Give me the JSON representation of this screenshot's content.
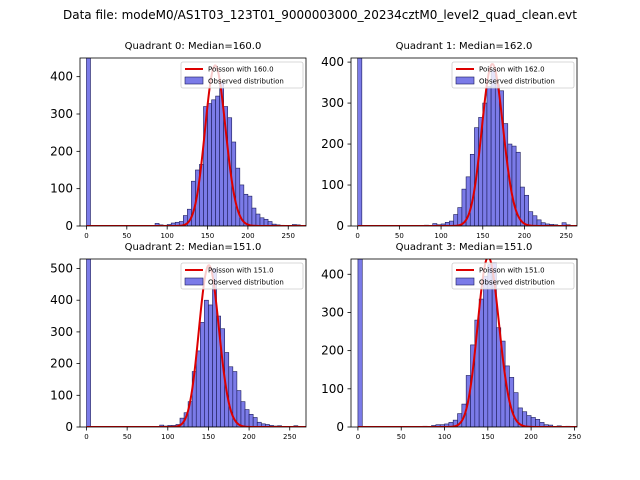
{
  "figure": {
    "suptitle": "Data file: modeM0/AS1T03_123T01_9000003000_20234cztM0_level2_quad_clean.evt"
  },
  "colors": {
    "bar_fill": "#7b7be8",
    "bar_edge": "#1c1c5a",
    "poisson": "#dd0000"
  },
  "chart_data": [
    {
      "type": "bar",
      "title": "Quadrant 0: Median=160.0",
      "bin_width": 5,
      "xlim": [
        -8,
        272
      ],
      "ylim": [
        0,
        450
      ],
      "xticks": [
        0,
        50,
        100,
        150,
        200,
        250
      ],
      "yticks": [
        0,
        100,
        200,
        300,
        400
      ],
      "legend": {
        "position": "top-right",
        "line_label": "Poisson with 160.0",
        "bar_label": "Observed distribution"
      },
      "bars": [
        {
          "x": 0,
          "y": 450
        },
        {
          "x": 85,
          "y": 7
        },
        {
          "x": 90,
          "y": 3
        },
        {
          "x": 95,
          "y": 2
        },
        {
          "x": 100,
          "y": 4
        },
        {
          "x": 105,
          "y": 8
        },
        {
          "x": 110,
          "y": 10
        },
        {
          "x": 115,
          "y": 12
        },
        {
          "x": 120,
          "y": 28
        },
        {
          "x": 125,
          "y": 45
        },
        {
          "x": 130,
          "y": 120
        },
        {
          "x": 135,
          "y": 150
        },
        {
          "x": 140,
          "y": 165
        },
        {
          "x": 145,
          "y": 320
        },
        {
          "x": 150,
          "y": 328
        },
        {
          "x": 155,
          "y": 338
        },
        {
          "x": 160,
          "y": 348
        },
        {
          "x": 165,
          "y": 385
        },
        {
          "x": 170,
          "y": 320
        },
        {
          "x": 175,
          "y": 290
        },
        {
          "x": 180,
          "y": 225
        },
        {
          "x": 185,
          "y": 155
        },
        {
          "x": 190,
          "y": 110
        },
        {
          "x": 195,
          "y": 85
        },
        {
          "x": 200,
          "y": 80
        },
        {
          "x": 205,
          "y": 48
        },
        {
          "x": 210,
          "y": 32
        },
        {
          "x": 215,
          "y": 22
        },
        {
          "x": 220,
          "y": 18
        },
        {
          "x": 225,
          "y": 12
        },
        {
          "x": 230,
          "y": 5
        },
        {
          "x": 235,
          "y": 3
        },
        {
          "x": 240,
          "y": 2
        },
        {
          "x": 255,
          "y": 4
        },
        {
          "x": 260,
          "y": 3
        }
      ],
      "poisson": {
        "mean": 160.0,
        "scale": 430
      }
    },
    {
      "type": "bar",
      "title": "Quadrant 1: Median=162.0",
      "bin_width": 5,
      "xlim": [
        -8,
        263
      ],
      "ylim": [
        0,
        410
      ],
      "xticks": [
        0,
        50,
        100,
        150,
        200,
        250
      ],
      "yticks": [
        0,
        100,
        200,
        300,
        400
      ],
      "legend": {
        "position": "top-right",
        "line_label": "Poisson with 162.0",
        "bar_label": "Observed distribution"
      },
      "bars": [
        {
          "x": 0,
          "y": 410
        },
        {
          "x": 80,
          "y": 2
        },
        {
          "x": 90,
          "y": 6
        },
        {
          "x": 95,
          "y": 3
        },
        {
          "x": 100,
          "y": 5
        },
        {
          "x": 105,
          "y": 9
        },
        {
          "x": 110,
          "y": 12
        },
        {
          "x": 115,
          "y": 28
        },
        {
          "x": 120,
          "y": 45
        },
        {
          "x": 125,
          "y": 90
        },
        {
          "x": 130,
          "y": 120
        },
        {
          "x": 135,
          "y": 175
        },
        {
          "x": 140,
          "y": 240
        },
        {
          "x": 145,
          "y": 265
        },
        {
          "x": 150,
          "y": 300
        },
        {
          "x": 155,
          "y": 340
        },
        {
          "x": 160,
          "y": 380
        },
        {
          "x": 165,
          "y": 345
        },
        {
          "x": 170,
          "y": 330
        },
        {
          "x": 175,
          "y": 250
        },
        {
          "x": 180,
          "y": 200
        },
        {
          "x": 185,
          "y": 195
        },
        {
          "x": 190,
          "y": 180
        },
        {
          "x": 195,
          "y": 95
        },
        {
          "x": 200,
          "y": 75
        },
        {
          "x": 205,
          "y": 35
        },
        {
          "x": 210,
          "y": 25
        },
        {
          "x": 215,
          "y": 15
        },
        {
          "x": 220,
          "y": 8
        },
        {
          "x": 225,
          "y": 5
        },
        {
          "x": 230,
          "y": 4
        },
        {
          "x": 235,
          "y": 3
        },
        {
          "x": 245,
          "y": 8
        },
        {
          "x": 250,
          "y": 3
        }
      ],
      "poisson": {
        "mean": 162.0,
        "scale": 395
      }
    },
    {
      "type": "bar",
      "title": "Quadrant 2: Median=151.0",
      "bin_width": 5,
      "xlim": [
        -8,
        270
      ],
      "ylim": [
        0,
        530
      ],
      "xticks": [
        0,
        50,
        100,
        150,
        200,
        250
      ],
      "yticks": [
        0,
        100,
        200,
        300,
        400,
        500
      ],
      "legend": {
        "position": "top-right",
        "line_label": "Poisson with 151.0",
        "bar_label": "Observed distribution"
      },
      "bars": [
        {
          "x": 0,
          "y": 530
        },
        {
          "x": 85,
          "y": 2
        },
        {
          "x": 90,
          "y": 6
        },
        {
          "x": 95,
          "y": 3
        },
        {
          "x": 100,
          "y": 5
        },
        {
          "x": 105,
          "y": 5
        },
        {
          "x": 110,
          "y": 8
        },
        {
          "x": 115,
          "y": 28
        },
        {
          "x": 120,
          "y": 45
        },
        {
          "x": 125,
          "y": 80
        },
        {
          "x": 130,
          "y": 175
        },
        {
          "x": 135,
          "y": 240
        },
        {
          "x": 140,
          "y": 330
        },
        {
          "x": 145,
          "y": 400
        },
        {
          "x": 150,
          "y": 385
        },
        {
          "x": 155,
          "y": 500
        },
        {
          "x": 160,
          "y": 350
        },
        {
          "x": 165,
          "y": 310
        },
        {
          "x": 170,
          "y": 235
        },
        {
          "x": 175,
          "y": 190
        },
        {
          "x": 180,
          "y": 175
        },
        {
          "x": 185,
          "y": 115
        },
        {
          "x": 190,
          "y": 80
        },
        {
          "x": 195,
          "y": 55
        },
        {
          "x": 200,
          "y": 40
        },
        {
          "x": 205,
          "y": 30
        },
        {
          "x": 210,
          "y": 15
        },
        {
          "x": 215,
          "y": 10
        },
        {
          "x": 220,
          "y": 8
        },
        {
          "x": 225,
          "y": 5
        },
        {
          "x": 230,
          "y": 3
        },
        {
          "x": 235,
          "y": 4
        },
        {
          "x": 255,
          "y": 4
        }
      ],
      "poisson": {
        "mean": 151.0,
        "scale": 510
      }
    },
    {
      "type": "bar",
      "title": "Quadrant 3: Median=151.0",
      "bin_width": 5,
      "xlim": [
        -8,
        253
      ],
      "ylim": [
        0,
        440
      ],
      "xticks": [
        0,
        50,
        100,
        150,
        200,
        250
      ],
      "yticks": [
        0,
        100,
        200,
        300,
        400
      ],
      "legend": {
        "position": "top-right",
        "line_label": "Poisson with 151.0",
        "bar_label": "Observed distribution"
      },
      "bars": [
        {
          "x": 0,
          "y": 440
        },
        {
          "x": 75,
          "y": 2
        },
        {
          "x": 85,
          "y": 4
        },
        {
          "x": 90,
          "y": 6
        },
        {
          "x": 95,
          "y": 6
        },
        {
          "x": 100,
          "y": 8
        },
        {
          "x": 105,
          "y": 12
        },
        {
          "x": 110,
          "y": 18
        },
        {
          "x": 115,
          "y": 35
        },
        {
          "x": 120,
          "y": 60
        },
        {
          "x": 125,
          "y": 135
        },
        {
          "x": 130,
          "y": 215
        },
        {
          "x": 135,
          "y": 280
        },
        {
          "x": 140,
          "y": 335
        },
        {
          "x": 145,
          "y": 395
        },
        {
          "x": 150,
          "y": 425
        },
        {
          "x": 155,
          "y": 430
        },
        {
          "x": 160,
          "y": 260
        },
        {
          "x": 165,
          "y": 225
        },
        {
          "x": 170,
          "y": 160
        },
        {
          "x": 175,
          "y": 130
        },
        {
          "x": 180,
          "y": 90
        },
        {
          "x": 185,
          "y": 50
        },
        {
          "x": 190,
          "y": 40
        },
        {
          "x": 195,
          "y": 30
        },
        {
          "x": 200,
          "y": 25
        },
        {
          "x": 205,
          "y": 20
        },
        {
          "x": 210,
          "y": 12
        },
        {
          "x": 215,
          "y": 6
        },
        {
          "x": 220,
          "y": 5
        },
        {
          "x": 230,
          "y": 3
        },
        {
          "x": 240,
          "y": 2
        }
      ],
      "poisson": {
        "mean": 151.0,
        "scale": 445
      }
    }
  ]
}
